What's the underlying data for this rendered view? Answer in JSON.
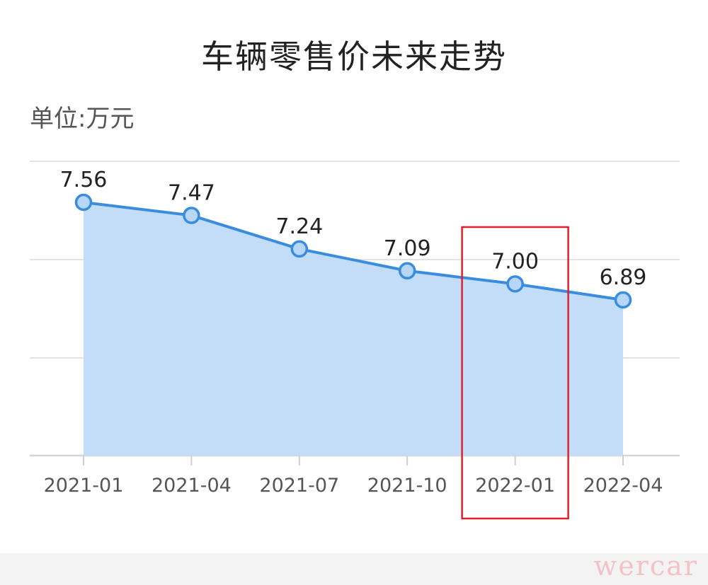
{
  "title": "车辆零售价未来走势",
  "unit_label": "单位:万元",
  "watermark": "wercar",
  "colors": {
    "line": "#3a8dde",
    "area": "#c3ddf8",
    "point_fill": "#b8d7f6",
    "grid": "#e3e3e3",
    "highlight_box": "#e0202a"
  },
  "chart_data": {
    "type": "area",
    "categories": [
      "2021-01",
      "2021-04",
      "2021-07",
      "2021-10",
      "2022-01",
      "2022-04"
    ],
    "values": [
      7.56,
      7.47,
      7.24,
      7.09,
      7.0,
      6.89
    ],
    "data_labels": [
      "7.56",
      "7.47",
      "7.24",
      "7.09",
      "7.00",
      "6.89"
    ],
    "unit": "万元",
    "grid": true,
    "highlighted_category": "2022-01"
  }
}
